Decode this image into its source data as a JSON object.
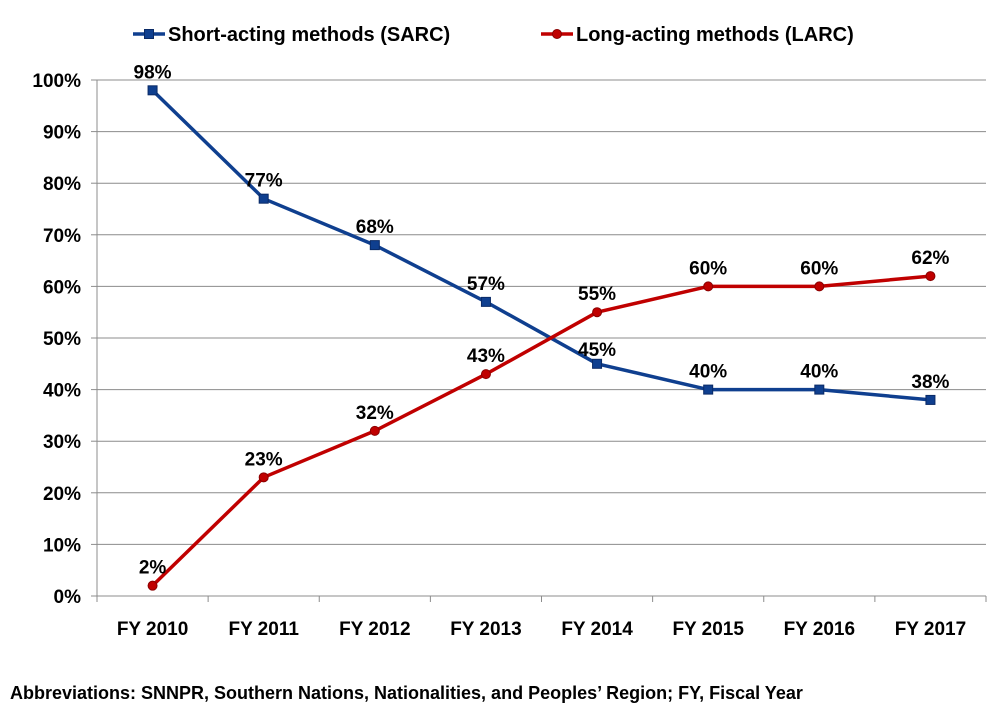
{
  "chart_data": {
    "type": "line",
    "categories": [
      "FY 2010",
      "FY 2011",
      "FY 2012",
      "FY 2013",
      "FY 2014",
      "FY 2015",
      "FY 2016",
      "FY 2017"
    ],
    "series": [
      {
        "name": "Short-acting methods (SARC)",
        "values": [
          98,
          77,
          68,
          57,
          45,
          40,
          40,
          38
        ],
        "labels": [
          "98%",
          "77%",
          "68%",
          "57%",
          "45%",
          "40%",
          "40%",
          "38%"
        ],
        "color": "#0f3f8f",
        "marker": "square"
      },
      {
        "name": "Long-acting methods (LARC)",
        "values": [
          2,
          23,
          32,
          43,
          55,
          60,
          60,
          62
        ],
        "labels": [
          "2%",
          "23%",
          "32%",
          "43%",
          "55%",
          "60%",
          "60%",
          "62%"
        ],
        "color": "#c00000",
        "marker": "circle"
      }
    ],
    "ylim": [
      0,
      100
    ],
    "yticks": [
      0,
      10,
      20,
      30,
      40,
      50,
      60,
      70,
      80,
      90,
      100
    ],
    "ytick_labels": [
      "0%",
      "10%",
      "20%",
      "30%",
      "40%",
      "50%",
      "60%",
      "70%",
      "80%",
      "90%",
      "100%"
    ],
    "grid": true,
    "legend_position": "top"
  },
  "footnote": "Abbreviations: SNNPR, Southern Nations, Nationalities, and Peoples’ Region; FY, Fiscal Year"
}
